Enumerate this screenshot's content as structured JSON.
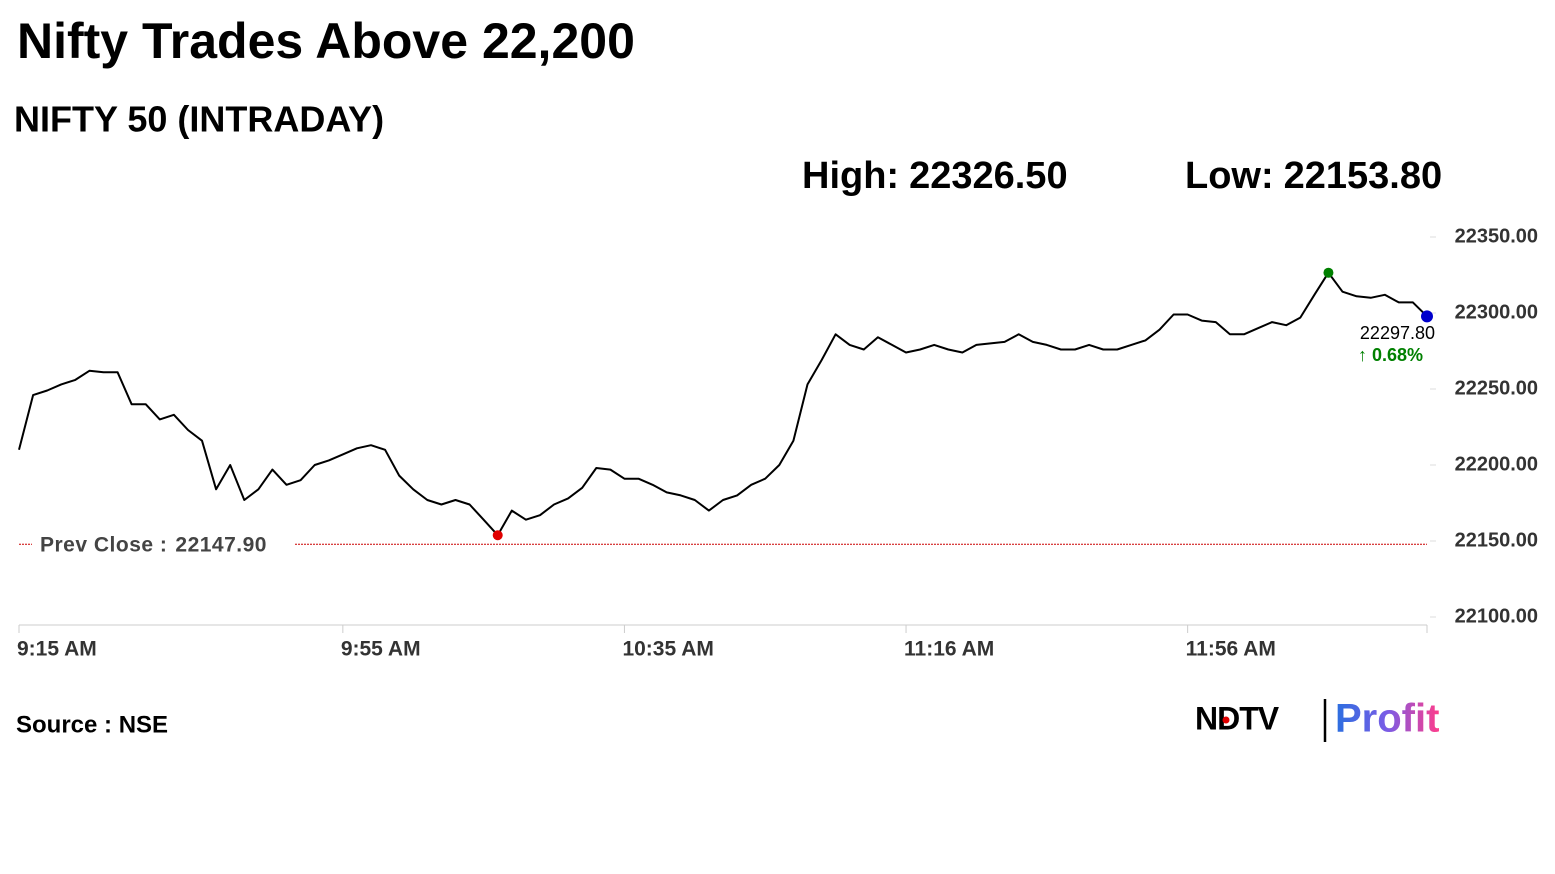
{
  "chart_data": {
    "type": "line",
    "title": "Nifty Trades Above 22,200",
    "subtitle": "NIFTY 50 (INTRADAY)",
    "stats": [
      {
        "label": "High:",
        "value": 22326.5,
        "value_label": "22326.50",
        "color": "#008000"
      },
      {
        "label": "Low:",
        "value": 22153.8,
        "value_label": "22153.80",
        "color": "#e00000"
      }
    ],
    "prev_close": {
      "label": "Prev Close :",
      "value": 22147.9,
      "value_label": "22147.90",
      "color": "#cc0000"
    },
    "last": {
      "value_label": "22297.80",
      "change": 0.68,
      "change_label": "↑ 0.68%",
      "color": "#0000cc",
      "change_color": "#008000"
    },
    "categories": [
      "9:15 AM",
      null,
      null,
      null,
      null,
      null,
      null,
      null,
      null,
      null,
      null,
      null,
      null,
      null,
      null,
      null,
      null,
      null,
      null,
      null,
      null,
      null,
      null,
      "9:55 AM",
      null,
      null,
      null,
      null,
      null,
      null,
      null,
      null,
      null,
      null,
      null,
      null,
      null,
      null,
      null,
      null,
      null,
      null,
      null,
      "10:35 AM",
      null,
      null,
      null,
      null,
      null,
      null,
      null,
      null,
      null,
      null,
      null,
      null,
      null,
      null,
      null,
      null,
      null,
      null,
      null,
      "11:16 AM",
      null,
      null,
      null,
      null,
      null,
      null,
      null,
      null,
      null,
      null,
      null,
      null,
      null,
      null,
      null,
      null,
      null,
      null,
      null,
      "11:56 AM",
      null,
      null,
      null,
      null,
      null,
      null,
      null,
      null,
      null,
      null,
      null,
      null,
      null,
      null,
      null,
      null,
      null
    ],
    "series": [
      {
        "name": "NIFTY 50",
        "color": "#000000",
        "values": [
          22210,
          22246,
          22249,
          22253,
          22256,
          22262,
          22261,
          22261,
          22240,
          22240,
          22230,
          22233,
          22223,
          22216,
          22184,
          22200,
          22177,
          22184,
          22197,
          22187,
          22190,
          22200,
          22203,
          22207,
          22211,
          22213,
          22210,
          22193,
          22184,
          22177,
          22174,
          22177,
          22174,
          22164,
          22153.8,
          22170,
          22164,
          22167,
          22174,
          22178,
          22185,
          22198,
          22197,
          22191,
          22191,
          22187,
          22182,
          22180,
          22177,
          22170,
          22177,
          22180,
          22187,
          22191,
          22200,
          22216,
          22253,
          22269,
          22286,
          22279,
          22276,
          22284,
          22279,
          22274,
          22276,
          22279,
          22276,
          22274,
          22279,
          22280,
          22281,
          22286,
          22281,
          22279,
          22276,
          22276,
          22279,
          22276,
          22276,
          22279,
          22282,
          22289,
          22299,
          22299,
          22295,
          22294,
          22286,
          22286,
          22290,
          22294,
          22292,
          22297,
          22312,
          22326.5,
          22314,
          22311,
          22310,
          22312,
          22307,
          22307,
          22297.8
        ]
      }
    ],
    "ylim": [
      22100,
      22350
    ],
    "yticks": [
      {
        "value": 22350,
        "label": "22350.00"
      },
      {
        "value": 22300,
        "label": "22300.00"
      },
      {
        "value": 22250,
        "label": "22250.00"
      },
      {
        "value": 22200,
        "label": "22200.00"
      },
      {
        "value": 22150,
        "label": "22150.00"
      },
      {
        "value": 22100,
        "label": "22100.00"
      }
    ],
    "source": "Source : NSE",
    "logo": {
      "left": "NDTV",
      "right": "Profit"
    }
  }
}
